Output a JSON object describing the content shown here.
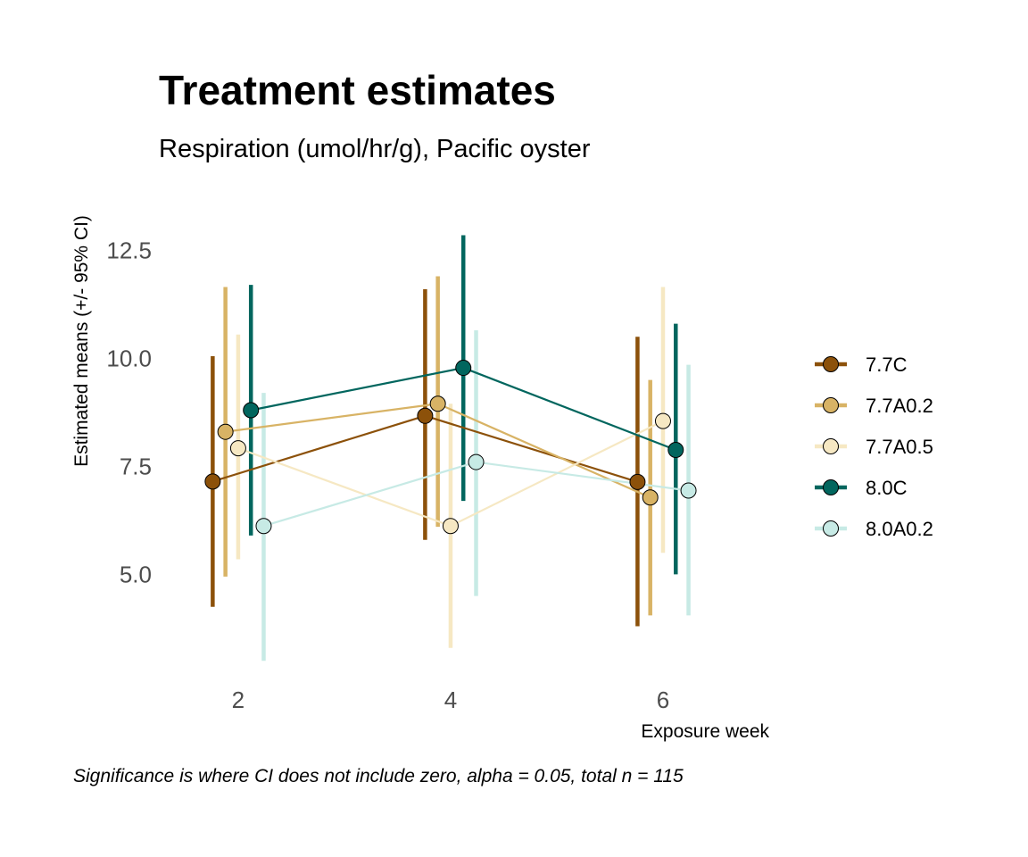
{
  "chart_data": {
    "type": "line",
    "title": "Treatment estimates",
    "subtitle": "Respiration (umol/hr/g), Pacific oyster",
    "xlabel": "Exposure week",
    "ylabel": "Estimated means (+/- 95% CI)",
    "caption": "Significance is where CI does not include zero, alpha = 0.05, total n = 115",
    "x": [
      2,
      4,
      6
    ],
    "x_tick_labels": [
      "2",
      "4",
      "6"
    ],
    "y_ticks": [
      5.0,
      7.5,
      10.0,
      12.5
    ],
    "y_tick_labels": [
      "5.0",
      "7.5",
      "10.0",
      "12.5"
    ],
    "xlim": [
      0.9,
      7.0
    ],
    "ylim": [
      2.55,
      13.5
    ],
    "grid": false,
    "legend_position": "right",
    "series": [
      {
        "name": "7.7C",
        "color": "#8c510a",
        "values": [
          7.15,
          8.67,
          7.14
        ],
        "lower": [
          4.25,
          5.8,
          3.8
        ],
        "upper": [
          10.05,
          11.6,
          10.5
        ]
      },
      {
        "name": "7.7A0.2",
        "color": "#d8b365",
        "values": [
          8.3,
          8.95,
          6.78
        ],
        "lower": [
          4.95,
          6.1,
          4.05
        ],
        "upper": [
          11.65,
          11.9,
          9.5
        ]
      },
      {
        "name": "7.7A0.5",
        "color": "#f6e8c3",
        "values": [
          7.92,
          6.12,
          8.55
        ],
        "lower": [
          5.35,
          3.3,
          5.5
        ],
        "upper": [
          10.55,
          8.95,
          11.65
        ]
      },
      {
        "name": "8.0C",
        "color": "#01665e",
        "values": [
          8.8,
          9.78,
          7.88
        ],
        "lower": [
          5.9,
          6.7,
          5.0
        ],
        "upper": [
          11.7,
          12.85,
          10.8
        ]
      },
      {
        "name": "8.0A0.2",
        "color": "#c7eae5",
        "values": [
          6.12,
          7.6,
          6.94
        ],
        "lower": [
          3.0,
          4.5,
          4.05
        ],
        "upper": [
          9.2,
          10.65,
          9.85
        ]
      }
    ]
  }
}
